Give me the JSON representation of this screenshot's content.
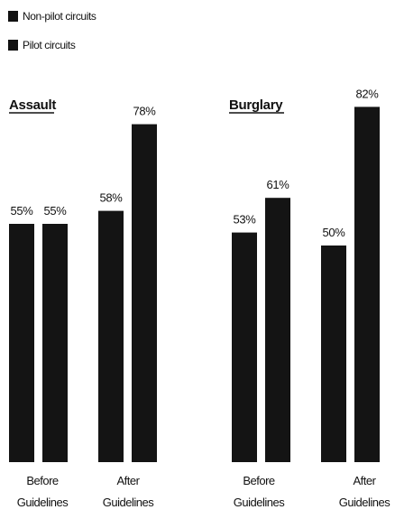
{
  "legend": {
    "items": [
      {
        "label": "Non-pilot circuits",
        "color": "#111111"
      },
      {
        "label": "Pilot circuits",
        "color": "#111111"
      }
    ]
  },
  "chart_data": [
    {
      "type": "bar",
      "title": "Assault",
      "categories": [
        "Before Guidelines",
        "After Guidelines"
      ],
      "category_lines": [
        [
          "Before",
          "Guidelines"
        ],
        [
          "After",
          "Guidelines"
        ]
      ],
      "series": [
        {
          "name": "Non-pilot circuits",
          "values": [
            55,
            58
          ]
        },
        {
          "name": "Pilot circuits",
          "values": [
            55,
            78
          ]
        }
      ],
      "value_labels": [
        [
          "55%",
          "58%"
        ],
        [
          "55%",
          "78%"
        ]
      ],
      "ylim": [
        0,
        100
      ],
      "grid": false,
      "legend_position": "top-left"
    },
    {
      "type": "bar",
      "title": "Burglary",
      "categories": [
        "Before Guidelines",
        "After Guidelines"
      ],
      "category_lines": [
        [
          "Before",
          "Guidelines"
        ],
        [
          "After",
          "Guidelines"
        ]
      ],
      "series": [
        {
          "name": "Non-pilot circuits",
          "values": [
            53,
            50
          ]
        },
        {
          "name": "Pilot circuits",
          "values": [
            61,
            82
          ]
        }
      ],
      "value_labels": [
        [
          "53%",
          "50%"
        ],
        [
          "61%",
          "82%"
        ]
      ],
      "ylim": [
        0,
        100
      ],
      "grid": false,
      "legend_position": "top-left"
    }
  ],
  "colors": {
    "bar": "#141414",
    "text": "#111111",
    "background": "#ffffff"
  }
}
